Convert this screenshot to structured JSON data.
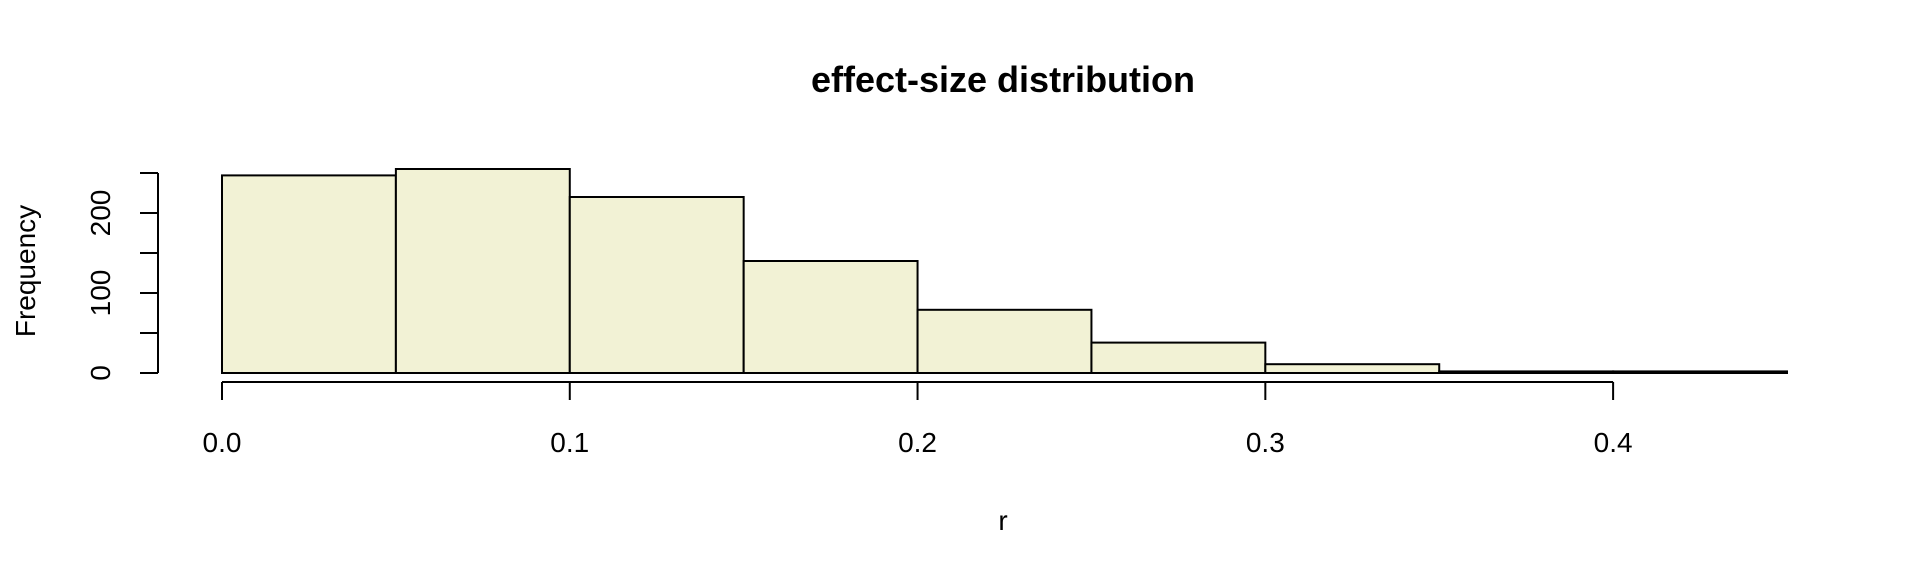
{
  "chart_data": {
    "type": "bar",
    "title": "effect-size distribution",
    "xlabel": "r",
    "ylabel": "Frequency",
    "bin_edges": [
      0.0,
      0.05,
      0.1,
      0.15,
      0.2,
      0.25,
      0.3,
      0.35,
      0.4,
      0.45
    ],
    "values": [
      247,
      255,
      220,
      140,
      79,
      38,
      11,
      2,
      2
    ],
    "xlim": [
      0.0,
      0.45
    ],
    "ylim": [
      0,
      250
    ],
    "x_ticks": [
      0.0,
      0.1,
      0.2,
      0.3,
      0.4
    ],
    "x_tick_labels": [
      "0.0",
      "0.1",
      "0.2",
      "0.3",
      "0.4"
    ],
    "y_ticks": [
      0,
      50,
      100,
      150,
      200,
      250
    ],
    "y_tick_labels": [
      "0",
      "",
      "100",
      "",
      "200",
      ""
    ],
    "bar_color": "#f2f2d5",
    "edge_color": "#000000",
    "grid": false,
    "legend": "none"
  }
}
